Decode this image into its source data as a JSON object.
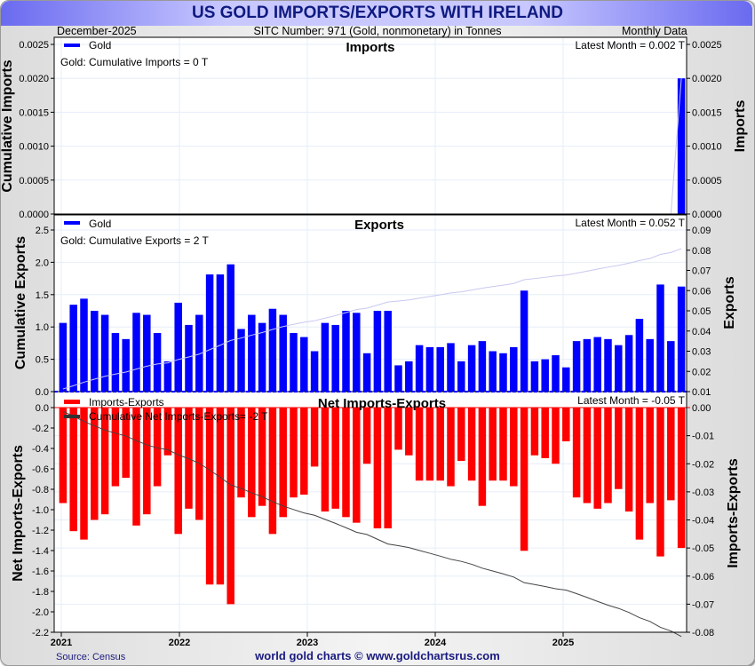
{
  "header": {
    "title": "US GOLD IMPORTS/EXPORTS WITH IRELAND",
    "date": "December-2025",
    "sitc": "SITC Number: 971 (Gold, nonmonetary) in Tonnes",
    "frequency": "Monthly Data"
  },
  "footer": {
    "source": "Source: Census",
    "credit": "world gold charts © www.goldchartsrus.com"
  },
  "colors": {
    "gold_bar": "#0000ff",
    "net_bar": "#ff0000",
    "cum_export_line": "#c8c8f0",
    "cum_net_line": "#444444"
  },
  "chart_data": [
    {
      "type": "bar",
      "title": "Imports",
      "legend": "Gold",
      "annotation": "Gold: Cumulative Imports = 0 T",
      "latest": "Latest Month = 0.002 T",
      "ylabel_left": "Cumulative Imports",
      "ylabel_right": "Imports",
      "yticks_left": [
        "0.0000",
        "0.0005",
        "0.0010",
        "0.0015",
        "0.0020",
        "0.0025"
      ],
      "yticks_right": [
        "0.0000",
        "0.0005",
        "0.0010",
        "0.0015",
        "0.0020",
        "0.0025"
      ],
      "ylim": [
        0,
        0.0027
      ],
      "x_start": "2021-01",
      "values": [
        0,
        0,
        0,
        0,
        0,
        0,
        0,
        0,
        0,
        0,
        0,
        0,
        0,
        0,
        0,
        0,
        0,
        0,
        0,
        0,
        0,
        0,
        0,
        0,
        0,
        0,
        0,
        0,
        0,
        0,
        0,
        0,
        0,
        0,
        0,
        0,
        0,
        0,
        0,
        0,
        0,
        0,
        0,
        0,
        0,
        0,
        0,
        0,
        0,
        0,
        0,
        0,
        0,
        0,
        0,
        0,
        0,
        0,
        0,
        0.002
      ]
    },
    {
      "type": "bar",
      "title": "Exports",
      "legend": "Gold",
      "annotation": "Gold: Cumulative Exports = 2 T",
      "latest": "Latest Month = 0.052 T",
      "ylabel_left": "Cumulative Exports",
      "ylabel_right": "Exports",
      "yticks_left": [
        "0.0",
        "0.5",
        "1.0",
        "1.5",
        "2.0",
        "2.5"
      ],
      "yticks_right": [
        "0.01",
        "0.02",
        "0.03",
        "0.04",
        "0.05",
        "0.06",
        "0.07",
        "0.08",
        "0.09"
      ],
      "ylim_left": [
        0,
        2.6
      ],
      "ylim_right": [
        0.01,
        0.095
      ],
      "values": [
        0.034,
        0.043,
        0.046,
        0.04,
        0.038,
        0.029,
        0.026,
        0.039,
        0.038,
        0.029,
        0.015,
        0.044,
        0.033,
        0.038,
        0.058,
        0.058,
        0.063,
        0.031,
        0.038,
        0.034,
        0.041,
        0.038,
        0.029,
        0.027,
        0.02,
        0.034,
        0.033,
        0.04,
        0.039,
        0.019,
        0.04,
        0.04,
        0.013,
        0.015,
        0.023,
        0.022,
        0.022,
        0.024,
        0.015,
        0.023,
        0.025,
        0.02,
        0.019,
        0.022,
        0.05,
        0.015,
        0.016,
        0.018,
        0.012,
        0.025,
        0.026,
        0.027,
        0.026,
        0.023,
        0.028,
        0.036,
        0.026,
        0.053,
        0.025,
        0.052
      ],
      "cumulative": [
        0.034,
        0.077,
        0.123,
        0.163,
        0.201,
        0.23,
        0.256,
        0.295,
        0.333,
        0.362,
        0.377,
        0.421,
        0.454,
        0.492,
        0.55,
        0.608,
        0.671,
        0.702,
        0.74,
        0.774,
        0.815,
        0.853,
        0.882,
        0.909,
        0.929,
        0.963,
        0.996,
        1.036,
        1.075,
        1.094,
        1.134,
        1.174,
        1.187,
        1.202,
        1.225,
        1.247,
        1.269,
        1.293,
        1.308,
        1.331,
        1.356,
        1.376,
        1.395,
        1.417,
        1.467,
        1.482,
        1.498,
        1.516,
        1.528,
        1.553,
        1.579,
        1.606,
        1.632,
        1.655,
        1.683,
        1.719,
        1.745,
        1.798,
        1.823,
        1.875
      ]
    },
    {
      "type": "bar",
      "title": "Net Imports-Exports",
      "legend": "Imports-Exports",
      "legend_line": "Cumulative Net Imports-Exports= -2 T",
      "latest": "Latest Month = -0.05 T",
      "ylabel_left": "Net Imports-Exports",
      "ylabel_right": "Imports-Exports",
      "yticks_left": [
        "0.0",
        "-0.2",
        "-0.4",
        "-0.6",
        "-0.8",
        "-1.0",
        "-1.2",
        "-1.4",
        "-1.6",
        "-1.8",
        "-2.0",
        "-2.2"
      ],
      "yticks_right": [
        "0.00",
        "-0.01",
        "-0.02",
        "-0.03",
        "-0.04",
        "-0.05",
        "-0.06",
        "-0.07",
        "-0.08"
      ],
      "ylim_left": [
        -2.2,
        0
      ],
      "ylim_right": [
        -0.08,
        0
      ],
      "values": [
        -0.034,
        -0.044,
        -0.047,
        -0.04,
        -0.038,
        -0.028,
        -0.025,
        -0.042,
        -0.038,
        -0.028,
        -0.017,
        -0.045,
        -0.036,
        -0.04,
        -0.063,
        -0.063,
        -0.07,
        -0.032,
        -0.039,
        -0.035,
        -0.045,
        -0.039,
        -0.032,
        -0.031,
        -0.021,
        -0.037,
        -0.036,
        -0.039,
        -0.041,
        -0.02,
        -0.043,
        -0.043,
        -0.015,
        -0.017,
        -0.026,
        -0.026,
        -0.026,
        -0.028,
        -0.019,
        -0.026,
        -0.035,
        -0.026,
        -0.026,
        -0.028,
        -0.051,
        -0.017,
        -0.018,
        -0.02,
        -0.012,
        -0.032,
        -0.034,
        -0.036,
        -0.034,
        -0.029,
        -0.037,
        -0.047,
        -0.034,
        -0.053,
        -0.033,
        -0.05
      ],
      "cumulative_end": -2.04
    }
  ],
  "x_axis": {
    "ticks": [
      "2021",
      "2022",
      "2023",
      "2024",
      "2025"
    ]
  }
}
